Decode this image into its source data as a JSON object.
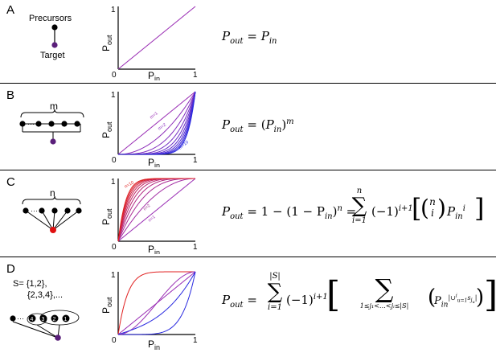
{
  "panels": [
    {
      "letter": "A",
      "diagram": {
        "top_label": "Precursors",
        "bottom_label": "Target"
      },
      "plot": {
        "x_label": "P",
        "x_sub": "in",
        "y_label": "P",
        "y_sub": "out",
        "tick_zero": "0",
        "tick_one_x": "1",
        "tick_one_y": "1"
      },
      "formula": {
        "lhs": "P",
        "lhs_sub": "out",
        "eq": "=",
        "rhs": "P",
        "rhs_sub": "in"
      }
    },
    {
      "letter": "B",
      "diagram": {
        "group_label": "m"
      },
      "plot": {
        "x_label": "P",
        "x_sub": "in",
        "y_label": "P",
        "y_sub": "out",
        "tick_zero": "0",
        "tick_one_x": "1",
        "tick_one_y": "1",
        "curve_label_first": "m=1",
        "curve_label_second": "m=2",
        "curve_label_last": "m=10"
      },
      "formula": {
        "lhs": "P",
        "lhs_sub": "out",
        "eq": "=",
        "open": "(",
        "base": "P",
        "base_sub": "in",
        "close": ")",
        "exp": "m"
      }
    },
    {
      "letter": "C",
      "diagram": {
        "group_label": "n"
      },
      "plot": {
        "x_label": "P",
        "x_sub": "in",
        "y_label": "P",
        "y_sub": "out",
        "tick_zero": "0",
        "tick_one_x": "1",
        "tick_one_y": "1",
        "curve_label_first": "n=1",
        "curve_label_second": "n=2",
        "curve_label_last": "n=10"
      },
      "formula": {
        "lhs": "P",
        "lhs_sub": "out",
        "part1": "= 1 − (1 − P",
        "part1_sub": "in",
        "part1_close": ")",
        "part1_exp": "n",
        "eq2": "=",
        "sum_top": "n",
        "sum_bottom": "i=1",
        "sign": "(−1)",
        "sign_exp": "i+1",
        "binom_top": "n",
        "binom_bottom": "i",
        "pin": "P",
        "pin_sub": "in",
        "pin_exp": "i"
      }
    },
    {
      "letter": "D",
      "diagram": {
        "set_line1": "S= {1,2},",
        "set_line2": "{2,3,4},...",
        "nodes": [
          "4",
          "3",
          "2",
          "1"
        ]
      },
      "plot": {
        "x_label": "P",
        "x_sub": "in",
        "y_label": "P",
        "y_sub": "out",
        "tick_zero": "0",
        "tick_one_x": "1",
        "tick_one_y": "1"
      },
      "formula": {
        "lhs": "P",
        "lhs_sub": "out",
        "eq": "=",
        "sum_top": "|S|",
        "sum_bottom": "i=1",
        "sign": "(−1)",
        "sign_exp": "i+1",
        "inner_bottom": "1≤j₁<…<jᵢ≤|S|",
        "pin": "P",
        "pin_sub": "in",
        "union_exp": "|∪",
        "union_sup": "i",
        "union_sub": "u=1",
        "set_s": "s",
        "set_sub": "j",
        "set_sub2": "u",
        "abs_close": "|"
      }
    }
  ],
  "colors": {
    "purple": "#9b30b5",
    "blue": "#2a2ae0",
    "red": "#e02020",
    "target_fill": "#5a1f7a",
    "red_node": "#e01010"
  }
}
